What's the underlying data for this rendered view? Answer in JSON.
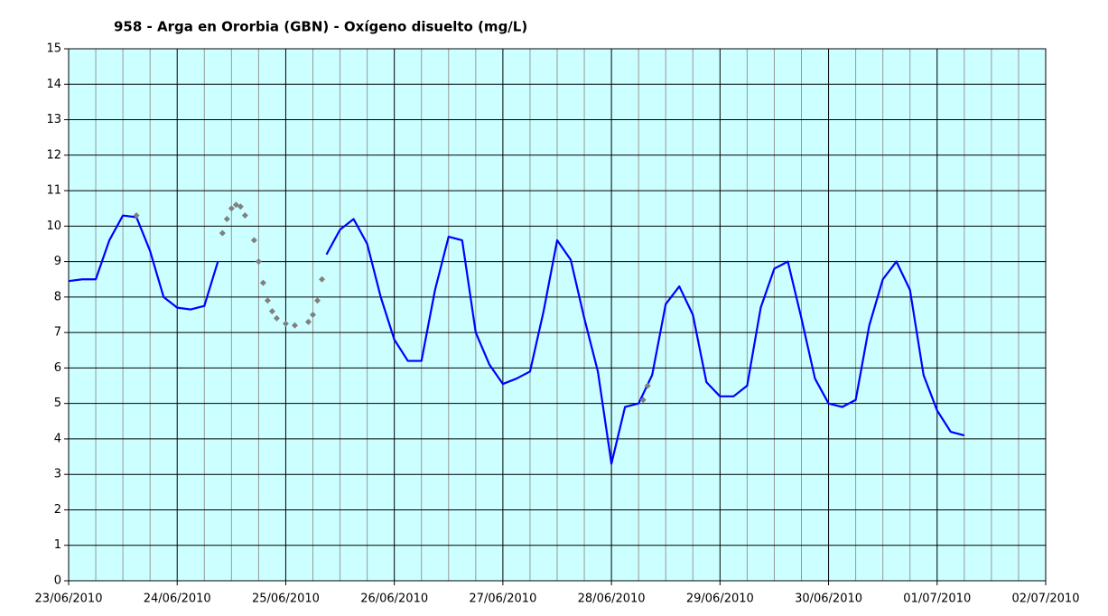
{
  "chart_data": {
    "type": "line",
    "title": "958 - Arga en Ororbia (GBN) - Oxígeno disuelto (mg/L)",
    "background": "#ccffff",
    "grid": true,
    "xlim": [
      "2010-06-23T00:00",
      "2010-07-02T00:00"
    ],
    "xticks": [
      {
        "value": "2010-06-23T00:00",
        "label": "23/06/2010"
      },
      {
        "value": "2010-06-24T00:00",
        "label": "24/06/2010"
      },
      {
        "value": "2010-06-25T00:00",
        "label": "25/06/2010"
      },
      {
        "value": "2010-06-26T00:00",
        "label": "26/06/2010"
      },
      {
        "value": "2010-06-27T00:00",
        "label": "27/06/2010"
      },
      {
        "value": "2010-06-28T00:00",
        "label": "28/06/2010"
      },
      {
        "value": "2010-06-29T00:00",
        "label": "29/06/2010"
      },
      {
        "value": "2010-06-30T00:00",
        "label": "30/06/2010"
      },
      {
        "value": "2010-07-01T00:00",
        "label": "01/07/2010"
      },
      {
        "value": "2010-07-02T00:00",
        "label": "02/07/2010"
      }
    ],
    "ylim": [
      0,
      15
    ],
    "yticks": [
      0,
      1,
      2,
      3,
      4,
      5,
      6,
      7,
      8,
      9,
      10,
      11,
      12,
      13,
      14,
      15
    ],
    "series": [
      {
        "color": "#0000ff",
        "style": "line",
        "x": [
          "2010-06-23T00:00",
          "2010-06-23T03:00",
          "2010-06-23T06:00",
          "2010-06-23T09:00",
          "2010-06-23T12:00",
          "2010-06-23T15:00",
          "2010-06-23T18:00",
          "2010-06-23T21:00",
          "2010-06-24T00:00",
          "2010-06-24T03:00",
          "2010-06-24T06:00",
          "2010-06-24T09:00",
          "2010-06-24T12:00",
          "2010-06-24T15:00",
          "2010-06-24T18:00",
          "2010-06-24T21:00",
          "2010-06-25T00:00",
          "2010-06-25T03:00",
          "2010-06-25T06:00",
          "2010-06-25T09:00",
          "2010-06-25T12:00",
          "2010-06-25T15:00",
          "2010-06-25T18:00",
          "2010-06-25T21:00",
          "2010-06-26T00:00",
          "2010-06-26T03:00",
          "2010-06-26T06:00",
          "2010-06-26T09:00",
          "2010-06-26T12:00",
          "2010-06-26T15:00",
          "2010-06-26T18:00",
          "2010-06-26T21:00",
          "2010-06-27T00:00",
          "2010-06-27T03:00",
          "2010-06-27T06:00",
          "2010-06-27T09:00",
          "2010-06-27T12:00",
          "2010-06-27T15:00",
          "2010-06-27T18:00",
          "2010-06-27T21:00",
          "2010-06-28T00:00",
          "2010-06-28T03:00",
          "2010-06-28T06:00",
          "2010-06-28T09:00",
          "2010-06-28T12:00",
          "2010-06-28T15:00",
          "2010-06-28T18:00",
          "2010-06-28T21:00",
          "2010-06-29T00:00",
          "2010-06-29T03:00",
          "2010-06-29T06:00",
          "2010-06-29T09:00",
          "2010-06-29T12:00",
          "2010-06-29T15:00",
          "2010-06-29T18:00",
          "2010-06-29T21:00",
          "2010-06-30T00:00",
          "2010-06-30T03:00",
          "2010-06-30T06:00",
          "2010-06-30T09:00",
          "2010-06-30T12:00",
          "2010-06-30T15:00",
          "2010-06-30T18:00",
          "2010-06-30T21:00",
          "2010-07-01T00:00",
          "2010-07-01T03:00",
          "2010-07-01T06:00"
        ],
        "values": [
          8.45,
          8.5,
          8.5,
          9.6,
          10.3,
          10.25,
          9.3,
          8.0,
          7.7,
          7.65,
          7.75,
          9.0,
          null,
          null,
          null,
          null,
          null,
          null,
          null,
          9.2,
          9.9,
          10.2,
          9.5,
          8.0,
          6.8,
          6.2,
          6.2,
          8.2,
          9.7,
          9.6,
          7.0,
          6.1,
          5.55,
          5.7,
          5.9,
          7.6,
          9.6,
          9.05,
          7.4,
          5.9,
          3.3,
          4.9,
          5.0,
          5.8,
          7.8,
          8.3,
          7.5,
          5.6,
          5.2,
          5.2,
          5.5,
          7.7,
          8.8,
          9.0,
          7.4,
          5.7,
          5.0,
          4.9,
          5.1,
          7.2,
          8.5,
          9.0,
          8.2,
          5.8,
          4.8,
          4.2,
          4.1
        ]
      },
      {
        "color": "#808080",
        "style": "diamond",
        "x": [
          "2010-06-23T15:00",
          "2010-06-24T10:00",
          "2010-06-24T11:00",
          "2010-06-24T12:00",
          "2010-06-24T13:00",
          "2010-06-24T14:00",
          "2010-06-24T15:00",
          "2010-06-24T17:00",
          "2010-06-24T18:00",
          "2010-06-24T19:00",
          "2010-06-24T20:00",
          "2010-06-24T21:00",
          "2010-06-24T22:00",
          "2010-06-25T00:00",
          "2010-06-25T02:00",
          "2010-06-25T05:00",
          "2010-06-25T06:00",
          "2010-06-25T07:00",
          "2010-06-25T08:00",
          "2010-06-28T07:00",
          "2010-06-28T08:00"
        ],
        "values": [
          10.3,
          9.8,
          10.2,
          10.5,
          10.6,
          10.55,
          10.3,
          9.6,
          9.0,
          8.4,
          7.9,
          7.6,
          7.4,
          7.25,
          7.2,
          7.3,
          7.5,
          7.9,
          8.5,
          5.1,
          5.5
        ]
      }
    ]
  }
}
